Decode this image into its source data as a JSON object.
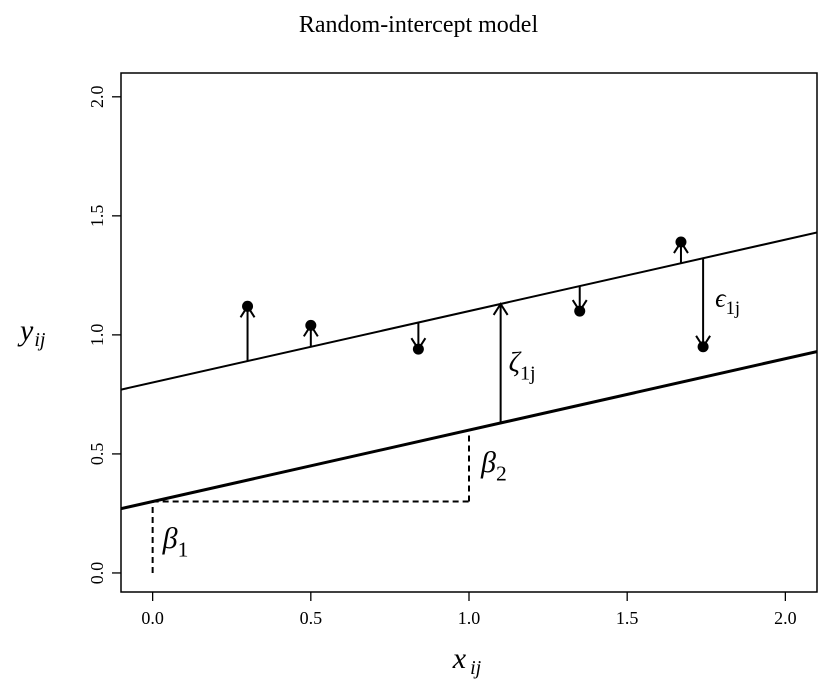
{
  "chart_data": {
    "type": "line",
    "title": "Random-intercept model",
    "xlabel": "x",
    "xlabel_sub": "ij",
    "ylabel": "y",
    "ylabel_sub": "ij",
    "xlim": [
      -0.1,
      2.1
    ],
    "ylim": [
      -0.08,
      2.1
    ],
    "x_ticks": [
      0.0,
      0.5,
      1.0,
      1.5,
      2.0
    ],
    "x_tick_labels": [
      "0.0",
      "0.5",
      "1.0",
      "1.5",
      "2.0"
    ],
    "y_ticks": [
      0.0,
      0.5,
      1.0,
      1.5,
      2.0
    ],
    "y_tick_labels": [
      "0.0",
      "0.5",
      "1.0",
      "1.5",
      "2.0"
    ],
    "grid": false,
    "legend": "none",
    "series": [
      {
        "role": "population-line",
        "intercept": 0.3,
        "slope": 0.3,
        "color": "#000000"
      },
      {
        "role": "cluster-line",
        "intercept": 0.8,
        "slope": 0.3,
        "color": "#000000"
      }
    ],
    "points": [
      {
        "x": 0.3,
        "y": 1.12
      },
      {
        "x": 0.5,
        "y": 1.04
      },
      {
        "x": 0.84,
        "y": 0.94
      },
      {
        "x": 1.35,
        "y": 1.1
      },
      {
        "x": 1.67,
        "y": 1.39
      },
      {
        "x": 1.74,
        "y": 0.95
      }
    ],
    "annotations": {
      "beta1": {
        "symbol": "β",
        "sub": "1"
      },
      "beta2": {
        "symbol": "β",
        "sub": "2"
      },
      "zeta": {
        "symbol": "ζ",
        "sub": "1j",
        "x": 1.1
      },
      "epsilon": {
        "symbol": "ϵ",
        "sub": "1j"
      }
    }
  }
}
